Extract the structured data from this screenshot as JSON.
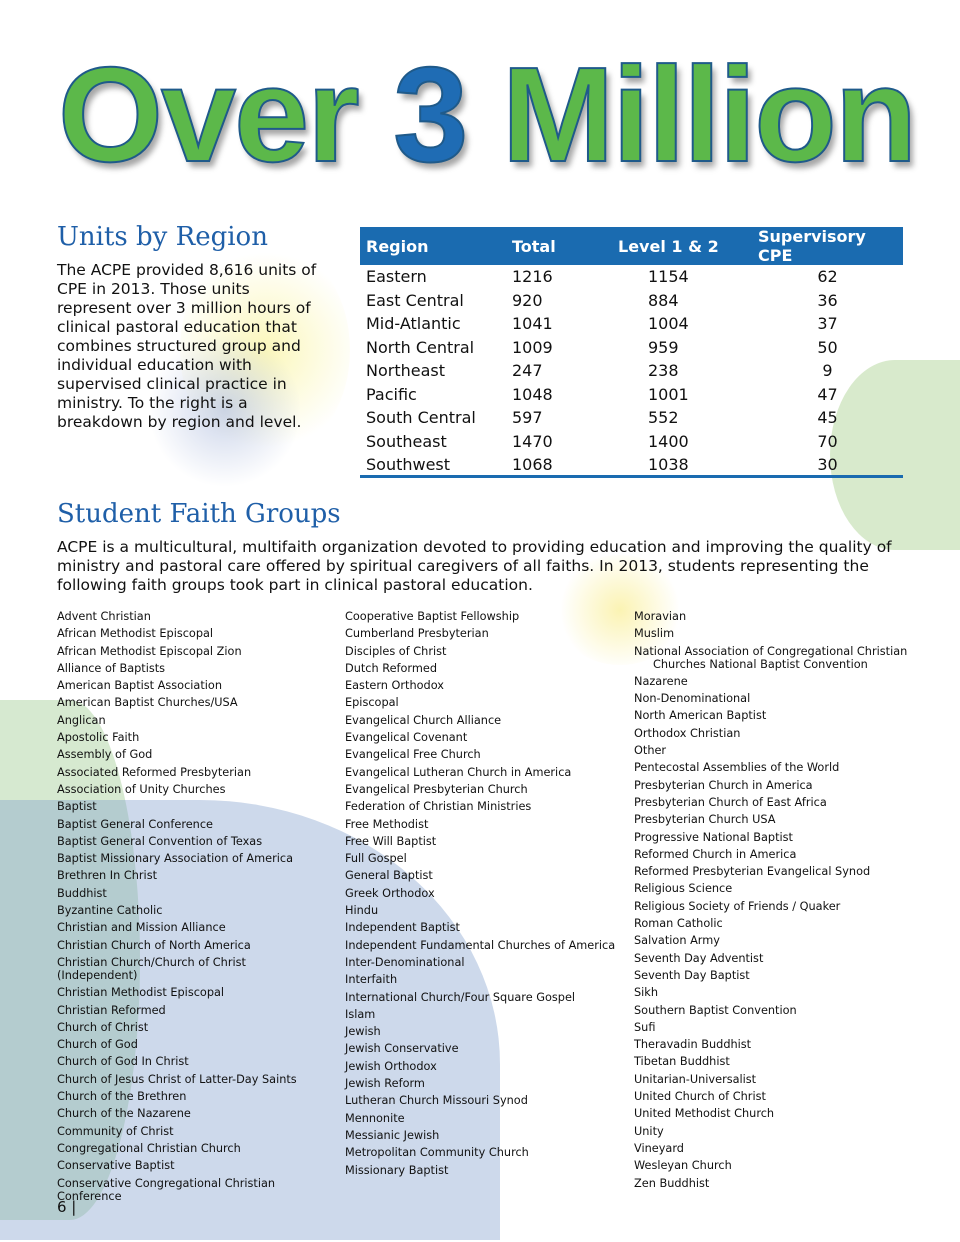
{
  "banner": {
    "part1": "Over ",
    "number": "3",
    "part2": " Million"
  },
  "colors": {
    "heading_blue": "#1f5fa8",
    "table_header": "#1a6bb0",
    "banner_green": "#5cb84a",
    "banner_number_blue": "#1f6cb4"
  },
  "units": {
    "heading": "Units by Region",
    "intro": "The ACPE provided 8,616 units of CPE in 2013. Those units represent over 3 million hours of clinical pastoral education that combines structured group and individual education with supervised clinical practice in ministry. To the right is a breakdown by region and level.",
    "table": {
      "headers": [
        "Region",
        "Total",
        "Level 1 & 2",
        "Supervisory CPE"
      ],
      "rows": [
        [
          "Eastern",
          "1216",
          "1154",
          "62"
        ],
        [
          "East Central",
          "920",
          "884",
          "36"
        ],
        [
          "Mid-Atlantic",
          "1041",
          "1004",
          "37"
        ],
        [
          "North Central",
          "1009",
          "959",
          "50"
        ],
        [
          "Northeast",
          "247",
          "238",
          "9"
        ],
        [
          "Pacific",
          "1048",
          "1001",
          "47"
        ],
        [
          "South Central",
          "597",
          "552",
          "45"
        ],
        [
          "Southeast",
          "1470",
          "1400",
          "70"
        ],
        [
          "Southwest",
          "1068",
          "1038",
          "30"
        ]
      ]
    }
  },
  "faith": {
    "heading": "Student Faith Groups",
    "intro": "ACPE is a multicultural, multifaith organization devoted to providing education and improving the quality of ministry and pastoral care offered by spiritual caregivers of all faiths. In 2013, students representing the following faith groups took part in clinical pastoral education.",
    "columns": [
      [
        "Advent Christian",
        "African Methodist Episcopal",
        "African Methodist Episcopal Zion",
        "Alliance of Baptists",
        "American Baptist Association",
        "American Baptist Churches/USA",
        "Anglican",
        "Apostolic Faith",
        "Assembly of God",
        "Associated Reformed Presbyterian",
        "Association of Unity Churches",
        "Baptist",
        "Baptist General Conference",
        "Baptist General Convention of Texas",
        "Baptist Missionary Association of America",
        "Brethren In Christ",
        "Buddhist",
        "Byzantine Catholic",
        "Christian and Mission Alliance",
        "Christian Church of North America",
        "Christian Church/Church of Christ (Independent)",
        "Christian Methodist Episcopal",
        "Christian Reformed",
        "Church of Christ",
        "Church of God",
        "Church of God In Christ",
        "Church of Jesus Christ of Latter-Day Saints",
        "Church of the Brethren",
        "Church of the Nazarene",
        "Community of Christ",
        "Congregational Christian Church",
        "Conservative Baptist",
        "Conservative Congregational Christian Conference"
      ],
      [
        "Cooperative Baptist Fellowship",
        "Cumberland Presbyterian",
        "Disciples of Christ",
        "Dutch Reformed",
        "Eastern Orthodox",
        "Episcopal",
        "Evangelical Church Alliance",
        "Evangelical Covenant",
        "Evangelical Free Church",
        "Evangelical Lutheran Church in America",
        "Evangelical Presbyterian Church",
        "Federation of Christian Ministries",
        "Free Methodist",
        "Free Will Baptist",
        "Full Gospel",
        "General Baptist",
        "Greek Orthodox",
        "Hindu",
        "Independent Baptist",
        "Independent Fundamental Churches of America",
        "Inter-Denominational",
        "Interfaith",
        "International Church/Four Square Gospel",
        "Islam",
        "Jewish",
        "Jewish Conservative",
        "Jewish Orthodox",
        "Jewish Reform",
        "Lutheran Church Missouri Synod",
        "Mennonite",
        "Messianic Jewish",
        "Metropolitan Community Church",
        "Missionary Baptist"
      ],
      [
        "Moravian",
        "Muslim",
        "National Association of Congregational Christian Churches National Baptist Convention",
        "Nazarene",
        "Non-Denominational",
        "North American Baptist",
        "Orthodox Christian",
        "Other",
        "Pentecostal Assemblies of the World",
        "Presbyterian Church in America",
        "Presbyterian Church of East Africa",
        "Presbyterian Church USA",
        "Progressive National Baptist",
        "Reformed Church in America",
        "Reformed Presbyterian Evangelical Synod",
        "Religious Science",
        "Religious Society of Friends / Quaker",
        "Roman Catholic",
        "Salvation Army",
        "Seventh Day Adventist",
        "Seventh Day Baptist",
        "Sikh",
        "Southern Baptist Convention",
        "Sufi",
        "Theravadin Buddhist",
        "Tibetan Buddhist",
        "Unitarian-Universalist",
        "United Church of Christ",
        "United Methodist Church",
        "Unity",
        "Vineyard",
        "Wesleyan Church",
        "Zen Buddhist"
      ]
    ]
  },
  "footer": {
    "page_number": "6 |"
  }
}
